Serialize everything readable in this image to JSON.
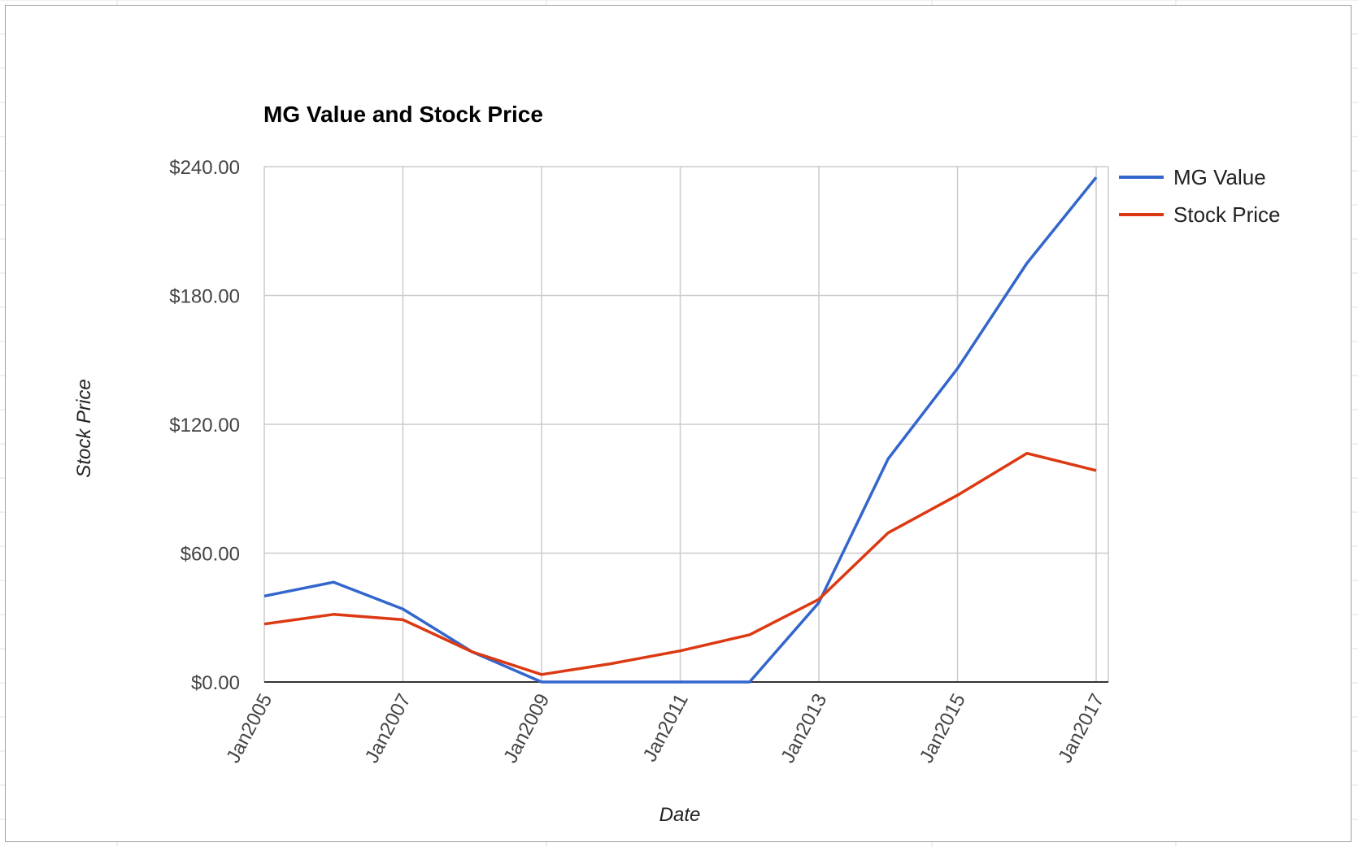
{
  "chart_data": {
    "type": "line",
    "title": "MG Value and Stock Price",
    "xlabel": "Date",
    "ylabel": "Stock Price",
    "x_start": "Jan2005",
    "x_end": "Jan2017",
    "x": [
      "Jan2005",
      "Jan2006",
      "Jan2007",
      "Jan2008",
      "Jan2009",
      "Jan2010",
      "Jan2011",
      "Jan2012",
      "Jan2013",
      "Jan2014",
      "Jan2015",
      "Jan2016",
      "Jan2017"
    ],
    "x_tick_labels": [
      "Jan2005",
      "Jan2007",
      "Jan2009",
      "Jan2011",
      "Jan2013",
      "Jan2015",
      "Jan2017"
    ],
    "y_tick_labels": [
      "$0.00",
      "$60.00",
      "$120.00",
      "$180.00",
      "$240.00"
    ],
    "ylim": [
      0,
      240
    ],
    "grid": true,
    "legend_position": "right",
    "series": [
      {
        "name": "MG Value",
        "color": "#3366cc",
        "points": [
          [
            "Jan2005",
            40
          ],
          [
            "Jan2006",
            46.5
          ],
          [
            "Jan2007",
            34
          ],
          [
            "Jan2008",
            14
          ],
          [
            "Jan2009",
            0
          ],
          [
            "Jan2010",
            0
          ],
          [
            "Jan2011",
            0
          ],
          [
            "Jan2012",
            0
          ],
          [
            "Jan2013",
            37
          ],
          [
            "Jan2014",
            104
          ],
          [
            "Jan2015",
            146
          ],
          [
            "Jan2016",
            195
          ],
          [
            "Jan2017",
            235
          ]
        ]
      },
      {
        "name": "Stock Price",
        "color": "#dc3912",
        "points": [
          [
            "Jan2005",
            27
          ],
          [
            "Jan2006",
            31.5
          ],
          [
            "Jan2007",
            29
          ],
          [
            "Jan2008",
            14
          ],
          [
            "Jan2009",
            3.5
          ],
          [
            "Jan2010",
            8.5
          ],
          [
            "Jan2011",
            14.5
          ],
          [
            "Jan2012",
            22
          ],
          [
            "Jan2013",
            38.5
          ],
          [
            "Jan2014",
            69.5
          ],
          [
            "Jan2015",
            87
          ],
          [
            "Jan2016",
            106.5
          ],
          [
            "Jan2017",
            98.5
          ]
        ]
      }
    ]
  }
}
